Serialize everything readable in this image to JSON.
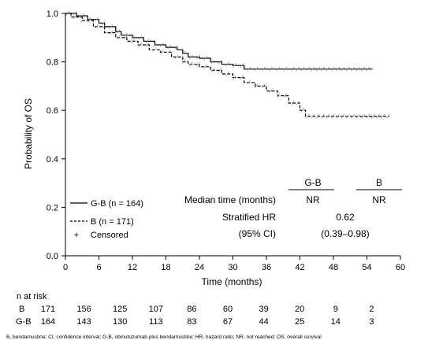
{
  "chart_data": {
    "type": "line",
    "subtype": "kaplan-meier step curves",
    "xlabel": "Time (months)",
    "ylabel": "Probability of OS",
    "xlim": [
      0,
      60
    ],
    "ylim": [
      0.0,
      1.0
    ],
    "x_ticks": [
      0,
      6,
      12,
      18,
      24,
      30,
      36,
      42,
      48,
      54,
      60
    ],
    "y_ticks": [
      "0.0",
      "0.2",
      "0.4",
      "0.6",
      "0.8",
      "1.0"
    ],
    "grid": false,
    "series": [
      {
        "name": "G-B (n = 164)",
        "style": "solid",
        "points": [
          [
            0,
            1.0
          ],
          [
            2,
            0.99
          ],
          [
            4,
            0.975
          ],
          [
            6,
            0.96
          ],
          [
            7,
            0.945
          ],
          [
            9,
            0.925
          ],
          [
            10,
            0.91
          ],
          [
            12,
            0.9
          ],
          [
            14,
            0.885
          ],
          [
            16,
            0.87
          ],
          [
            18,
            0.86
          ],
          [
            20,
            0.85
          ],
          [
            21,
            0.835
          ],
          [
            22,
            0.82
          ],
          [
            24,
            0.815
          ],
          [
            26,
            0.8
          ],
          [
            28,
            0.79
          ],
          [
            30,
            0.785
          ],
          [
            32,
            0.77
          ],
          [
            55,
            0.77
          ]
        ]
      },
      {
        "name": "B (n = 171)",
        "style": "dashed",
        "points": [
          [
            0,
            1.0
          ],
          [
            1,
            0.985
          ],
          [
            3,
            0.97
          ],
          [
            5,
            0.945
          ],
          [
            7,
            0.92
          ],
          [
            9,
            0.9
          ],
          [
            11,
            0.885
          ],
          [
            13,
            0.87
          ],
          [
            15,
            0.85
          ],
          [
            17,
            0.84
          ],
          [
            19,
            0.82
          ],
          [
            21,
            0.8
          ],
          [
            22,
            0.79
          ],
          [
            24,
            0.78
          ],
          [
            26,
            0.765
          ],
          [
            28,
            0.75
          ],
          [
            30,
            0.735
          ],
          [
            32,
            0.715
          ],
          [
            34,
            0.7
          ],
          [
            36,
            0.68
          ],
          [
            38,
            0.66
          ],
          [
            40,
            0.63
          ],
          [
            42,
            0.6
          ],
          [
            43,
            0.575
          ],
          [
            58,
            0.575
          ]
        ]
      }
    ],
    "legend": {
      "position": "bottom-left",
      "items": [
        {
          "label": "G-B (n = 164)",
          "style": "solid"
        },
        {
          "label": "B (n = 171)",
          "style": "dashed"
        },
        {
          "label": "Censored",
          "style": "plus"
        }
      ]
    },
    "summary_table": {
      "col_headers": [
        "G-B",
        "B"
      ],
      "rows": [
        {
          "label": "Median time (months)",
          "values": [
            "NR",
            "NR"
          ]
        },
        {
          "label": "Stratified HR",
          "values": [
            "0.62"
          ]
        },
        {
          "label": "(95% CI)",
          "values": [
            "(0.39–0.98)"
          ]
        }
      ]
    },
    "risk_table": {
      "title": "n at risk",
      "rows": [
        {
          "label": "B",
          "values": [
            "171",
            "156",
            "125",
            "107",
            "86",
            "60",
            "39",
            "20",
            "9",
            "2"
          ]
        },
        {
          "label": "G-B",
          "values": [
            "164",
            "143",
            "130",
            "113",
            "83",
            "67",
            "44",
            "25",
            "14",
            "3"
          ]
        }
      ]
    }
  },
  "footnote": "B, bendamustine; CI, confidence interval; G-B, obinutuzumab plus bendamustine; HR, hazard ratio; NR, not reached; OS, overall survival"
}
